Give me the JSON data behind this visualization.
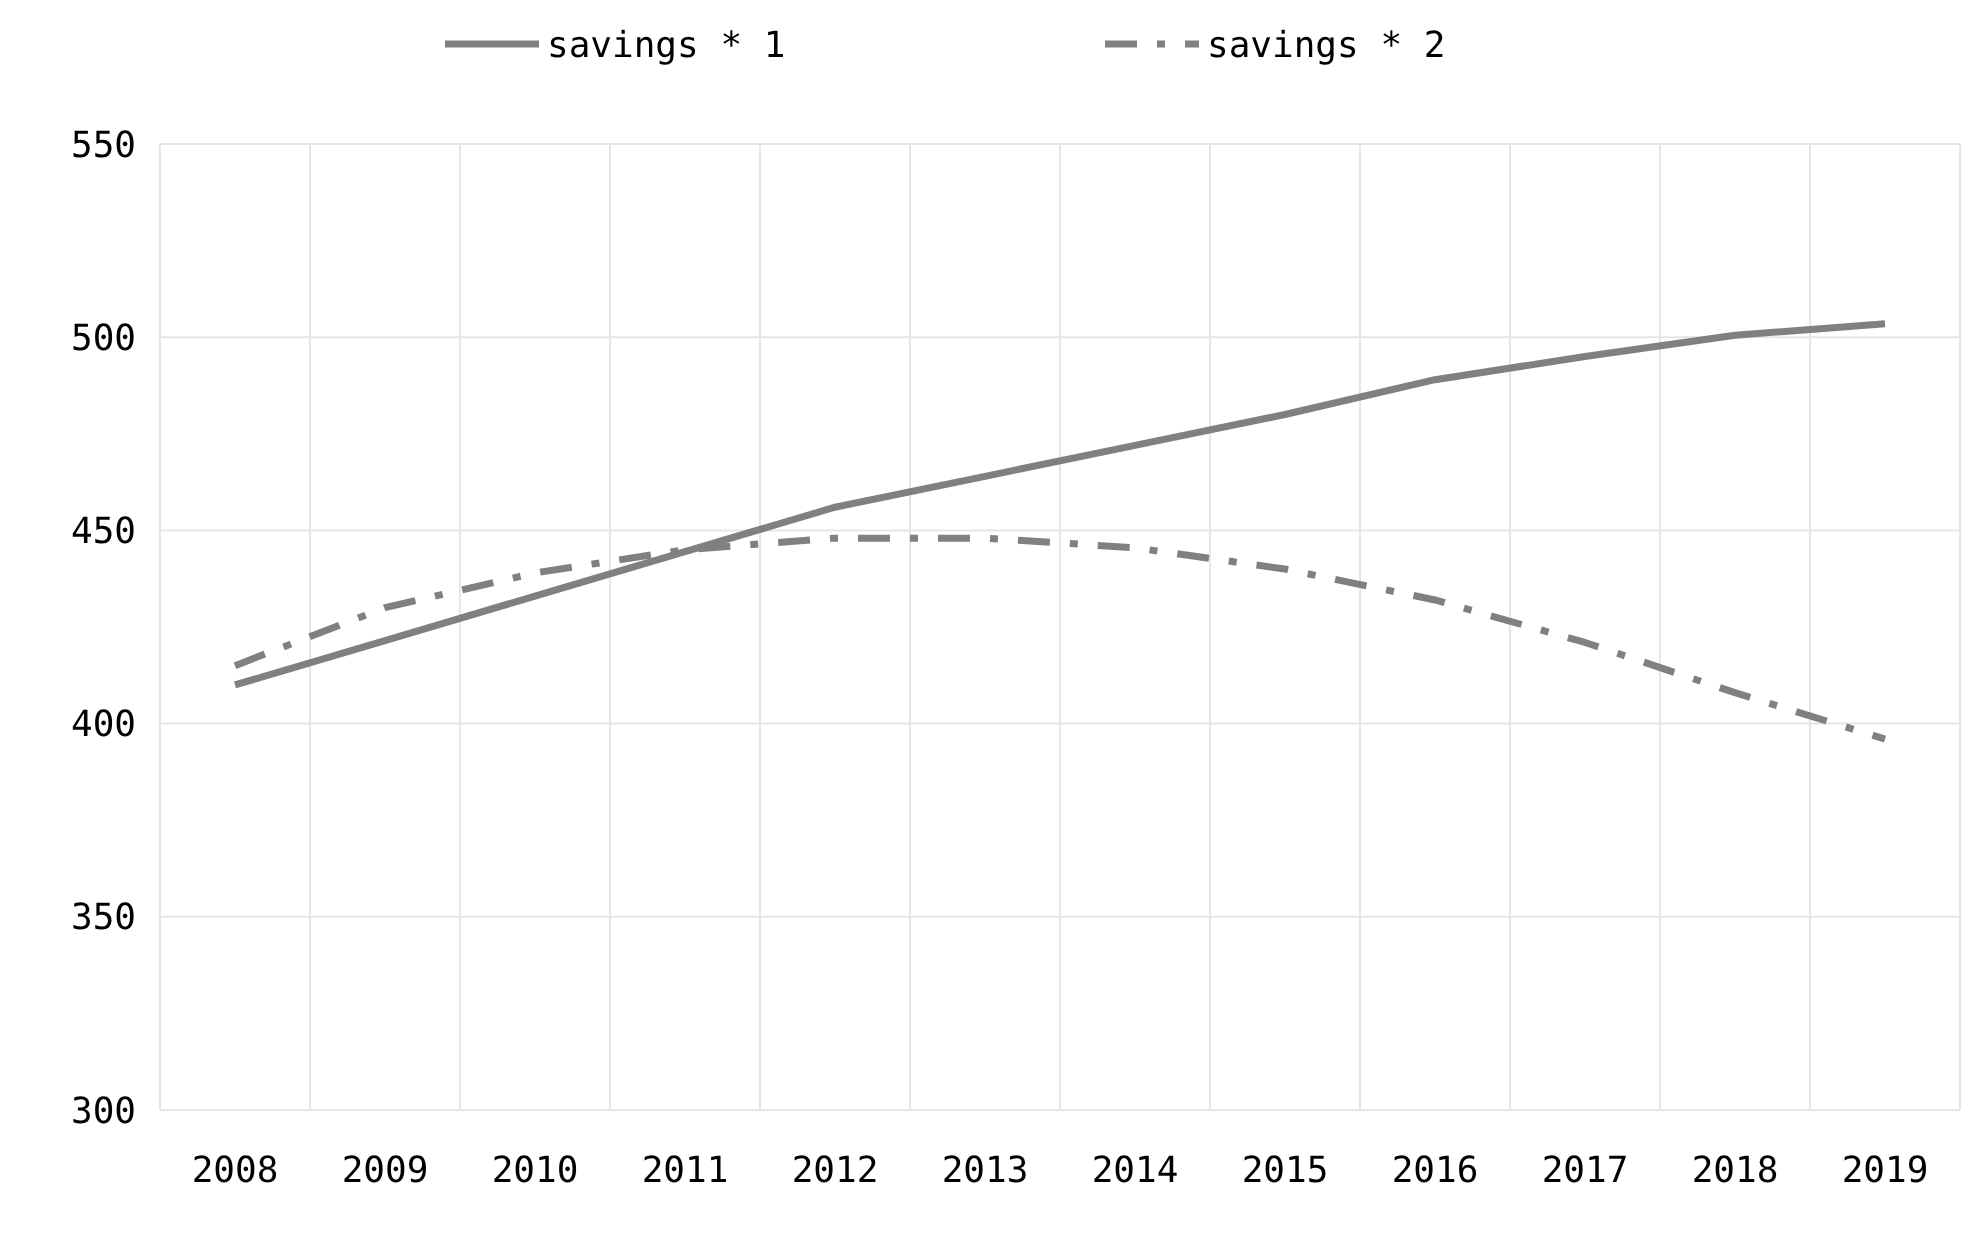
{
  "chart_data": {
    "type": "line",
    "categories": [
      "2008",
      "2009",
      "2010",
      "2011",
      "2012",
      "2013",
      "2014",
      "2015",
      "2016",
      "2017",
      "2018",
      "2019"
    ],
    "series": [
      {
        "name": "savings * 1",
        "color": "#808080",
        "line_style": "solid",
        "values": [
          410,
          421.5,
          433,
          444.5,
          456,
          464,
          472,
          480,
          489,
          495,
          500.5,
          503.5
        ]
      },
      {
        "name": "savings * 2",
        "color": "#808080",
        "line_style": "dashdot",
        "values": [
          415,
          430,
          439,
          445,
          448,
          448,
          445.5,
          440,
          432,
          421,
          408,
          396
        ]
      }
    ],
    "ylim": [
      300,
      550
    ],
    "yticks": [
      300,
      350,
      400,
      450,
      500,
      550
    ],
    "grid": true,
    "legend": "top",
    "marker": "none"
  }
}
